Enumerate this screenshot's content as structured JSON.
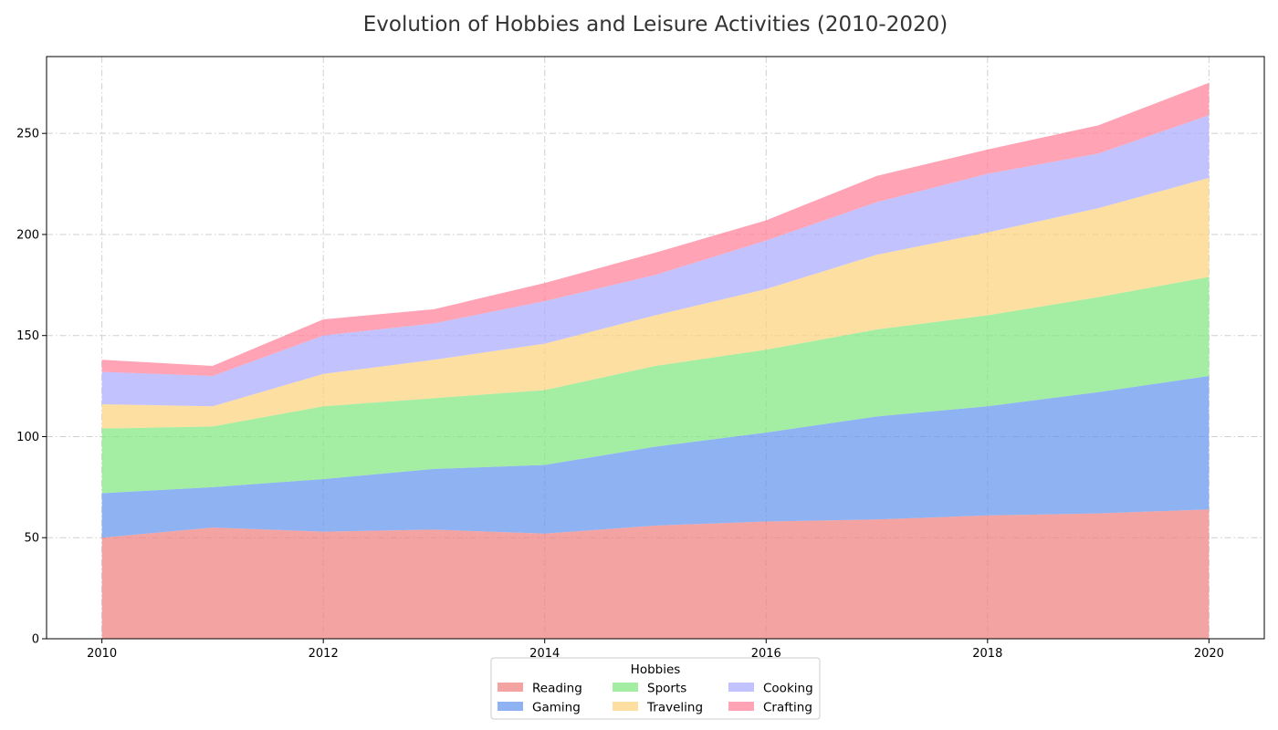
{
  "chart_data": {
    "type": "area",
    "stacked": true,
    "title": "Evolution of Hobbies and Leisure Activities (2010-2020)",
    "xlabel": "",
    "ylabel": "",
    "x": [
      2010,
      2011,
      2012,
      2013,
      2014,
      2015,
      2016,
      2017,
      2018,
      2019,
      2020
    ],
    "xticks": [
      2010,
      2012,
      2014,
      2016,
      2018,
      2020
    ],
    "xlim": [
      2009.5,
      2020.5
    ],
    "yticks": [
      0,
      50,
      100,
      150,
      200,
      250
    ],
    "ylim": [
      0,
      288
    ],
    "grid": true,
    "legend": {
      "title": "Hobbies",
      "placement": "bottom-center",
      "columns": 3
    },
    "series": [
      {
        "name": "Reading",
        "color": "#f08080",
        "values": [
          50,
          55,
          53,
          54,
          52,
          56,
          58,
          59,
          61,
          62,
          64
        ]
      },
      {
        "name": "Gaming",
        "color": "#6495ed",
        "values": [
          22,
          20,
          26,
          30,
          34,
          39,
          44,
          51,
          54,
          60,
          66
        ]
      },
      {
        "name": "Sports",
        "color": "#7fe87f",
        "values": [
          32,
          30,
          36,
          35,
          37,
          40,
          41,
          43,
          45,
          47,
          49
        ]
      },
      {
        "name": "Traveling",
        "color": "#fcd27e",
        "values": [
          12,
          10,
          16,
          19,
          23,
          25,
          30,
          37,
          41,
          44,
          49
        ]
      },
      {
        "name": "Cooking",
        "color": "#aaaaff",
        "values": [
          16,
          15,
          19,
          18,
          21,
          20,
          24,
          26,
          29,
          27,
          31
        ]
      },
      {
        "name": "Crafting",
        "color": "#ff7f99",
        "values": [
          6,
          5,
          8,
          7,
          9,
          11,
          10,
          13,
          12,
          14,
          16
        ]
      }
    ]
  }
}
